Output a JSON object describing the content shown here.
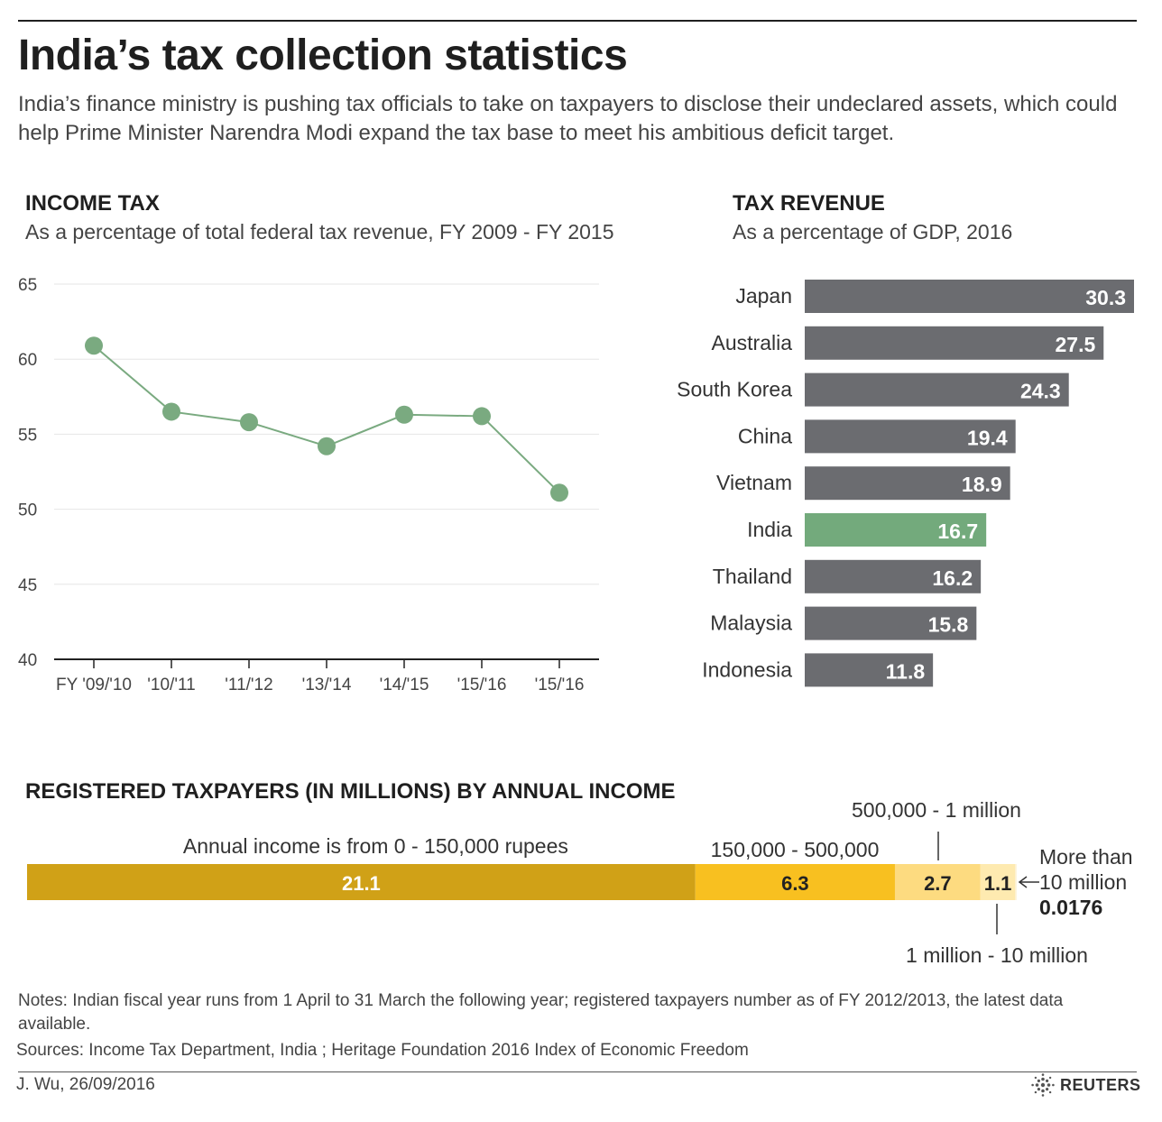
{
  "header": {
    "title": "India’s tax collection statistics",
    "subtitle": "India’s finance ministry is pushing tax officials to take on taxpayers to disclose their undeclared assets, which could help Prime Minister Narendra Modi expand the tax base to meet his ambitious deficit target."
  },
  "colors": {
    "line": "#7aaa80",
    "bar_gray": "#6b6c70",
    "bar_highlight": "#73aa7c",
    "seg1": "#d0a117",
    "seg2": "#f8c020",
    "seg3": "#fddb80",
    "seg4": "#feeab0",
    "seg5": "#fdf3d8"
  },
  "income_tax": {
    "title": "INCOME TAX",
    "subtitle": "As a percentage of total federal tax revenue, FY 2009 - FY 2015"
  },
  "tax_revenue": {
    "title": "TAX REVENUE",
    "subtitle": "As a percentage of GDP, 2016"
  },
  "registered": {
    "title": "REGISTERED TAXPAYERS (IN MILLIONS) BY ANNUAL INCOME",
    "label_seg1": "Annual income is from 0 - 150,000 rupees",
    "label_seg2": "150,000 - 500,000",
    "label_seg3": "500,000 - 1 million",
    "label_seg4": "1 million - 10 million",
    "label_seg5_line1": "More than",
    "label_seg5_line2": "10 million",
    "label_seg5_value": "0.0176"
  },
  "chart_data": [
    {
      "type": "line",
      "x": [
        "FY '09/'10",
        "'10/'11",
        "'11/'12",
        "'13/'14",
        "'14/'15",
        "'15/'16",
        "'15/'16"
      ],
      "values": [
        60.9,
        56.5,
        55.8,
        54.2,
        56.3,
        56.2,
        51.1
      ],
      "ylim": [
        40,
        65
      ],
      "yticks": [
        40,
        45,
        50,
        55,
        60,
        65
      ],
      "grid": true
    },
    {
      "type": "bar",
      "orientation": "horizontal",
      "categories": [
        "Japan",
        "Australia",
        "South Korea",
        "China",
        "Vietnam",
        "India",
        "Thailand",
        "Malaysia",
        "Indonesia"
      ],
      "values": [
        30.3,
        27.5,
        24.3,
        19.4,
        18.9,
        16.7,
        16.2,
        15.8,
        11.8
      ],
      "highlight": "India"
    },
    {
      "type": "bar",
      "orientation": "stacked-horizontal",
      "categories": [
        "0 - 150,000",
        "150,000 - 500,000",
        "500,000 - 1 million",
        "1 million - 10 million",
        "More than 10 million"
      ],
      "values": [
        21.1,
        6.3,
        2.7,
        1.1,
        0.0176
      ]
    }
  ],
  "footer": {
    "notes": "Notes: Indian fiscal year runs from 1 April to 31 March the following year; registered taxpayers number as of FY 2012/2013, the latest data available.",
    "sources": "Sources: Income Tax Department, India ; Heritage Foundation 2016 Index of Economic Freedom",
    "byline": "J. Wu,  26/09/2016",
    "logo": "REUTERS"
  }
}
